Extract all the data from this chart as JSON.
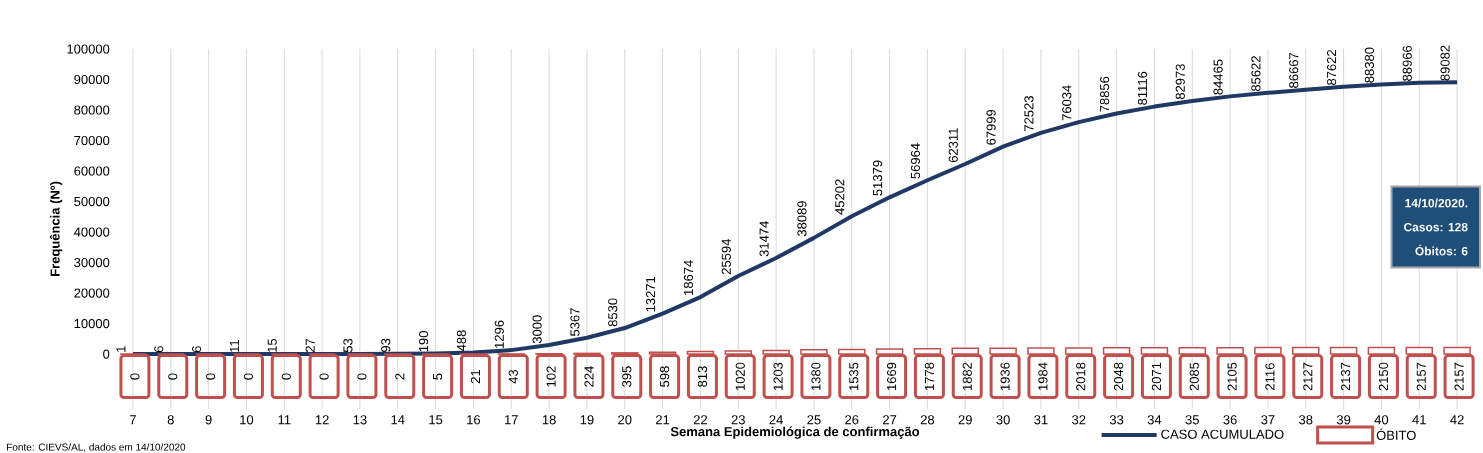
{
  "chart_data": {
    "type": "line",
    "xlabel": "Semana Epidemiológica de confirmação",
    "ylabel": "Frequência (Nº)",
    "categories": [
      "7",
      "8",
      "9",
      "10",
      "11",
      "12",
      "13",
      "14",
      "15",
      "16",
      "17",
      "18",
      "19",
      "20",
      "21",
      "22",
      "23",
      "24",
      "25",
      "26",
      "27",
      "28",
      "29",
      "30",
      "31",
      "32",
      "33",
      "34",
      "35",
      "36",
      "37",
      "38",
      "39",
      "40",
      "41",
      "42"
    ],
    "series": [
      {
        "name": "CASO ACUMULADO",
        "color": "#1f3864",
        "values": [
          1,
          6,
          6,
          11,
          15,
          27,
          53,
          93,
          190,
          488,
          1296,
          3000,
          5367,
          8530,
          13271,
          18674,
          25594,
          31474,
          38089,
          45202,
          51379,
          56964,
          62311,
          67999,
          72523,
          76034,
          78856,
          81116,
          82973,
          84465,
          85622,
          86667,
          87622,
          88380,
          88966,
          89082
        ]
      },
      {
        "name": "ÓBITO",
        "type": "bar",
        "color": "#c0504d",
        "values": [
          0,
          0,
          0,
          0,
          0,
          0,
          0,
          2,
          5,
          21,
          43,
          102,
          224,
          395,
          598,
          813,
          1020,
          1203,
          1380,
          1535,
          1669,
          1778,
          1882,
          1936,
          1984,
          2018,
          2048,
          2071,
          2085,
          2105,
          2116,
          2127,
          2137,
          2150,
          2157,
          2157
        ]
      }
    ],
    "ylim": [
      -18000,
      100000
    ],
    "yticks": [
      0,
      10000,
      20000,
      30000,
      40000,
      50000,
      60000,
      70000,
      80000,
      90000,
      100000
    ],
    "grid": "x",
    "legend": "bottom right",
    "data_labels": true,
    "marker": "none",
    "annotations": [
      "Fonte: CIEVS/AL, dados em 14/10/2020",
      "14/10/2020.",
      "Casos: 128",
      "Óbitos: 6"
    ]
  }
}
